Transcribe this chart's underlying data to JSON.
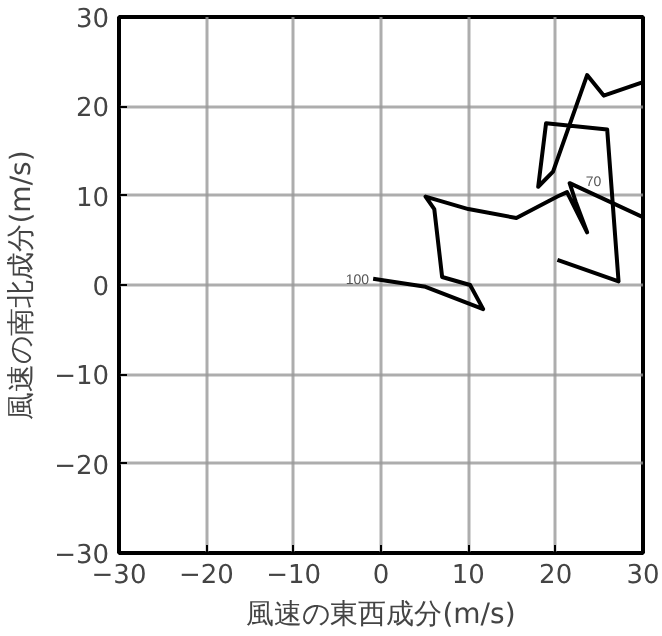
{
  "chart_data": {
    "type": "line",
    "xlabel": "風速の東西成分(m/s)",
    "ylabel": "風速の南北成分(m/s)",
    "series": [
      {
        "color": "#000000",
        "x": [
          -0.9,
          5.1,
          11.7,
          10.2,
          7.0,
          6.1,
          5.1,
          10.0,
          15.5,
          20.2,
          21.3,
          23.6,
          22.3,
          21.6,
          30.0
        ],
        "values": [
          0.7,
          -0.2,
          -2.7,
          0.0,
          0.9,
          8.5,
          9.9,
          8.5,
          7.5,
          9.9,
          10.4,
          5.9,
          9.3,
          11.4,
          7.6
        ]
      },
      {
        "color": "#000000",
        "x": [
          20.2,
          27.2,
          25.9,
          18.9,
          18.0,
          19.7,
          23.6,
          25.5,
          30.0
        ],
        "values": [
          2.8,
          0.4,
          17.4,
          18.1,
          11.0,
          12.7,
          23.5,
          21.2,
          22.7
        ]
      }
    ],
    "annotations": [
      {
        "text": "100",
        "x": -0.9,
        "y": 0.7
      },
      {
        "text": "70",
        "x": 21.6,
        "y": 11.4
      }
    ],
    "xlim": [
      -30,
      30
    ],
    "ylim": [
      -30,
      30
    ],
    "xticks": [
      -30,
      -20,
      -10,
      0,
      10,
      20,
      30
    ],
    "yticks": [
      -30,
      -20,
      -10,
      0,
      10,
      20,
      30
    ],
    "grid": true,
    "line_style": "solid",
    "marker": "none"
  }
}
